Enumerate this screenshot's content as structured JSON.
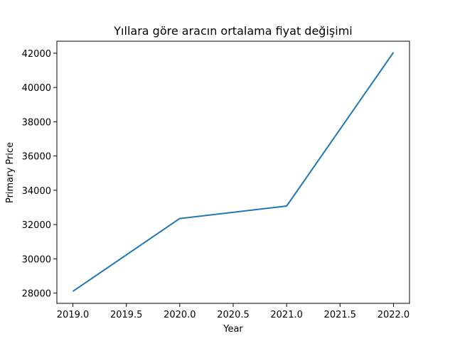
{
  "chart_data": {
    "type": "line",
    "title": "Yıllara göre aracın ortalama fiyat değişimi",
    "xlabel": "Year",
    "ylabel": "Primary Price",
    "xlim": [
      2018.85,
      2022.15
    ],
    "ylim": [
      27400,
      42700
    ],
    "xticks": [
      2019.0,
      2019.5,
      2020.0,
      2020.5,
      2021.0,
      2021.5,
      2022.0
    ],
    "xtick_labels": [
      "2019.0",
      "2019.5",
      "2020.0",
      "2020.5",
      "2021.0",
      "2021.5",
      "2022.0"
    ],
    "yticks": [
      28000,
      30000,
      32000,
      34000,
      36000,
      38000,
      40000,
      42000
    ],
    "ytick_labels": [
      "28000",
      "30000",
      "32000",
      "34000",
      "36000",
      "38000",
      "40000",
      "42000"
    ],
    "grid": false,
    "series": [
      {
        "x": [
          2019,
          2020,
          2021,
          2022
        ],
        "y": [
          28100,
          32350,
          33080,
          42050
        ],
        "color": "#1f77b4"
      }
    ]
  }
}
